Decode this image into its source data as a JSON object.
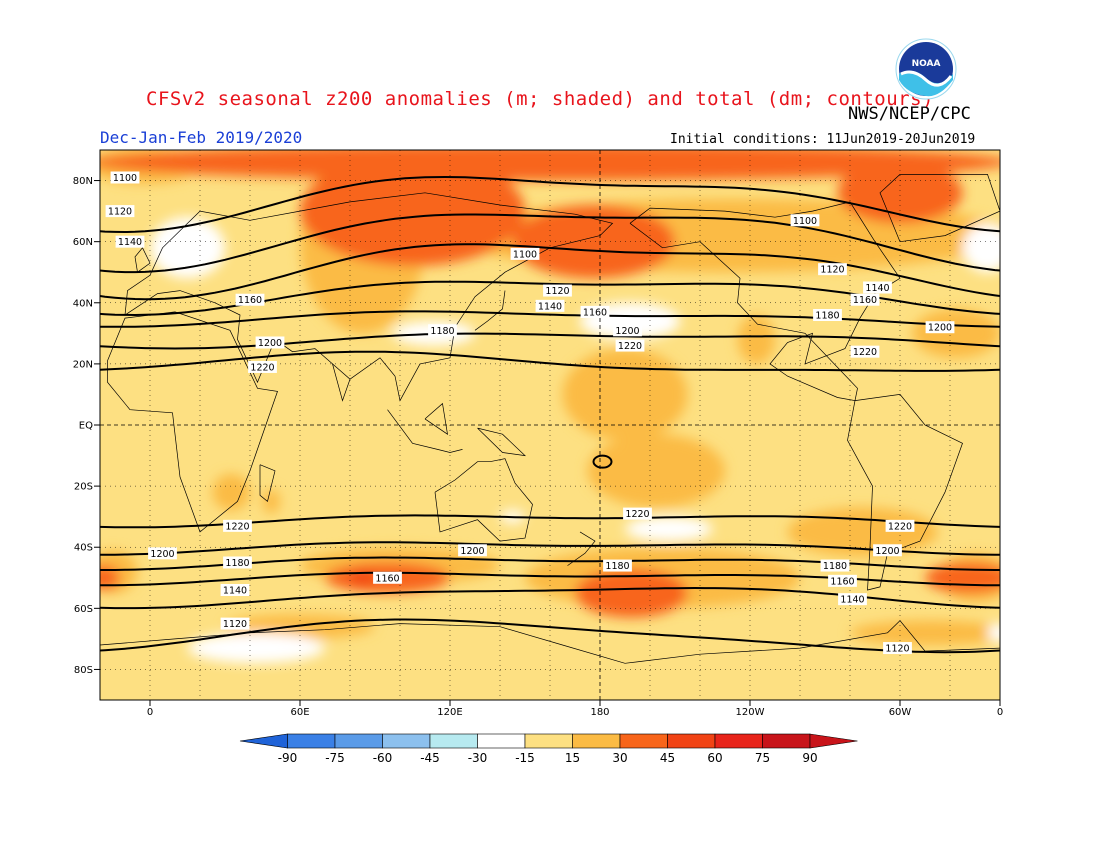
{
  "title": "CFSv2 seasonal z200 anomalies (m; shaded) and total (dm; contours)",
  "agency": "NWS/NCEP/CPC",
  "season": "Dec-Jan-Feb 2019/2020",
  "initial_conditions": "Initial conditions: 11Jun2019-20Jun2019",
  "logo_text": "NOAA",
  "colors": {
    "neg90": "#1f63d8",
    "neg75": "#3a80e6",
    "neg60": "#5a9be8",
    "neg45": "#8cc0ee",
    "neg30": "#b7eaf0",
    "neg15": "#ffffff",
    "pos15": "#fde082",
    "pos30": "#fbbb44",
    "pos45": "#f8651a",
    "pos60": "#f14314",
    "pos75": "#e8241a",
    "pos90": "#c8141a",
    "contour": "#000000",
    "title": "#e8141c",
    "season": "#1a3fd6"
  },
  "lat_labels": [
    "80N",
    "60N",
    "40N",
    "20N",
    "EQ",
    "20S",
    "40S",
    "60S",
    "80S"
  ],
  "lon_labels": [
    "0",
    "60E",
    "120E",
    "180",
    "120W",
    "60W",
    "0"
  ],
  "colorbar_labels": [
    "-90",
    "-75",
    "-60",
    "-45",
    "-30",
    "-15",
    "15",
    "30",
    "45",
    "60",
    "75",
    "90"
  ],
  "contours": [
    {
      "value": "1100",
      "labels": [
        {
          "lon": -10,
          "lat": 81
        },
        {
          "lon": 150,
          "lat": 56
        },
        {
          "lon": 262,
          "lat": 67
        }
      ]
    },
    {
      "value": "1120",
      "labels": [
        {
          "lon": -12,
          "lat": 70
        },
        {
          "lon": 163,
          "lat": 44
        },
        {
          "lon": 273,
          "lat": 51
        }
      ]
    },
    {
      "value": "1140",
      "labels": [
        {
          "lon": -8,
          "lat": 60
        },
        {
          "lon": 160,
          "lat": 39
        },
        {
          "lon": 291,
          "lat": 45
        }
      ]
    },
    {
      "value": "1160",
      "labels": [
        {
          "lon": 40,
          "lat": 41
        },
        {
          "lon": 178,
          "lat": 37
        },
        {
          "lon": 286,
          "lat": 41
        }
      ]
    },
    {
      "value": "1180",
      "labels": [
        {
          "lon": 117,
          "lat": 31
        },
        {
          "lon": 271,
          "lat": 36
        }
      ]
    },
    {
      "value": "1200",
      "labels": [
        {
          "lon": 48,
          "lat": 27
        },
        {
          "lon": 191,
          "lat": 31
        },
        {
          "lon": 316,
          "lat": 32
        }
      ]
    },
    {
      "value": "1220",
      "labels": [
        {
          "lon": 45,
          "lat": 19
        },
        {
          "lon": 192,
          "lat": 26
        },
        {
          "lon": 286,
          "lat": 24
        }
      ]
    },
    {
      "value": "1220",
      "labels": [
        {
          "lon": 35,
          "lat": -33
        },
        {
          "lon": 195,
          "lat": -29
        },
        {
          "lon": 300,
          "lat": -33
        }
      ]
    },
    {
      "value": "1200",
      "labels": [
        {
          "lon": 5,
          "lat": -42
        },
        {
          "lon": 129,
          "lat": -41
        },
        {
          "lon": 295,
          "lat": -41
        }
      ]
    },
    {
      "value": "1180",
      "labels": [
        {
          "lon": 35,
          "lat": -45
        },
        {
          "lon": 187,
          "lat": -46
        },
        {
          "lon": 274,
          "lat": -46
        }
      ]
    },
    {
      "value": "1160",
      "labels": [
        {
          "lon": 95,
          "lat": -50
        },
        {
          "lon": 277,
          "lat": -51
        }
      ]
    },
    {
      "value": "1140",
      "labels": [
        {
          "lon": 34,
          "lat": -54
        },
        {
          "lon": 281,
          "lat": -57
        }
      ]
    },
    {
      "value": "1120",
      "labels": [
        {
          "lon": 34,
          "lat": -65
        },
        {
          "lon": 299,
          "lat": -73
        }
      ]
    }
  ]
}
